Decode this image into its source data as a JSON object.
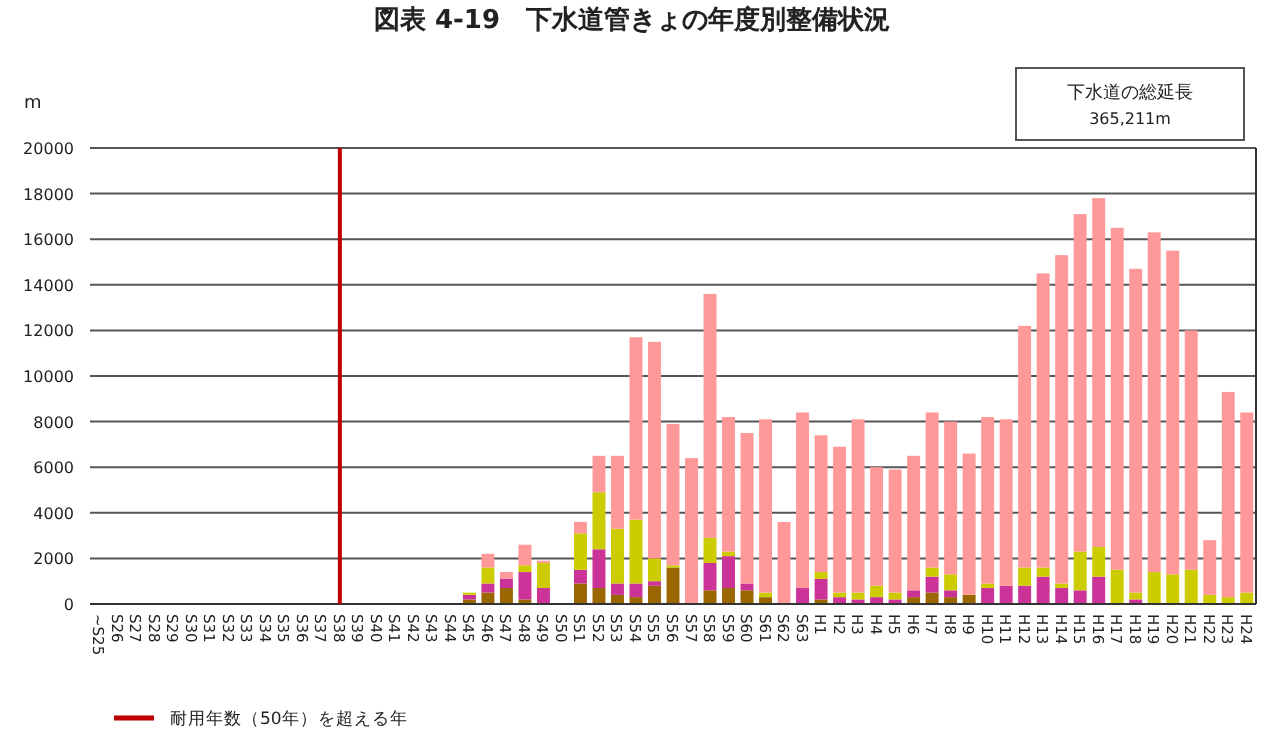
{
  "chart_data": {
    "type": "bar",
    "stacked": true,
    "title": "図表 4-19　下水道管きょの年度別整備状況",
    "ylabel": "m",
    "categories": [
      "~S25",
      "S26",
      "S27",
      "S28",
      "S29",
      "S30",
      "S31",
      "S32",
      "S33",
      "S34",
      "S35",
      "S36",
      "S37",
      "S38",
      "S39",
      "S40",
      "S41",
      "S42",
      "S43",
      "S44",
      "S45",
      "S46",
      "S47",
      "S48",
      "S49",
      "S50",
      "S51",
      "S52",
      "S53",
      "S54",
      "S55",
      "S56",
      "S57",
      "S58",
      "S59",
      "S60",
      "S61",
      "S62",
      "S63",
      "H1",
      "H2",
      "H3",
      "H4",
      "H5",
      "H6",
      "H7",
      "H8",
      "H9",
      "H10",
      "H11",
      "H12",
      "H13",
      "H14",
      "H15",
      "H16",
      "H17",
      "H18",
      "H19",
      "H20",
      "H21",
      "H22",
      "H23",
      "H24"
    ],
    "series": [
      {
        "color": "#996600",
        "values": [
          null,
          null,
          null,
          null,
          null,
          null,
          null,
          null,
          null,
          null,
          null,
          null,
          null,
          null,
          null,
          null,
          null,
          null,
          null,
          null,
          200,
          500,
          700,
          200,
          0,
          0,
          900,
          700,
          400,
          300,
          800,
          1600,
          0,
          600,
          700,
          600,
          300,
          0,
          0,
          200,
          0,
          null,
          null,
          0,
          300,
          500,
          300,
          400,
          0,
          0,
          0,
          0,
          0,
          0,
          0,
          null,
          null,
          0,
          0,
          0,
          0,
          0,
          0
        ]
      },
      {
        "color": "#cc3399",
        "values": [
          null,
          null,
          null,
          null,
          null,
          null,
          null,
          null,
          null,
          null,
          null,
          null,
          null,
          null,
          null,
          null,
          null,
          null,
          null,
          null,
          200,
          400,
          400,
          1200,
          700,
          0,
          600,
          1700,
          500,
          600,
          200,
          0,
          0,
          1200,
          1400,
          300,
          0,
          0,
          700,
          900,
          300,
          200,
          300,
          200,
          300,
          700,
          300,
          0,
          700,
          800,
          800,
          1200,
          700,
          600,
          1200,
          0,
          200,
          0,
          0,
          0,
          0,
          0,
          0
        ]
      },
      {
        "color": "#cccc00",
        "values": [
          null,
          null,
          null,
          null,
          null,
          null,
          null,
          null,
          null,
          null,
          null,
          null,
          null,
          null,
          null,
          null,
          null,
          null,
          null,
          null,
          100,
          700,
          0,
          300,
          1100,
          0,
          1600,
          2500,
          2400,
          2800,
          1000,
          100,
          0,
          1100,
          200,
          0,
          200,
          0,
          0,
          300,
          200,
          300,
          500,
          300,
          0,
          400,
          700,
          0,
          200,
          0,
          800,
          400,
          200,
          1700,
          1300,
          1500,
          300,
          1400,
          1300,
          1500,
          400,
          300,
          500
        ]
      },
      {
        "color": "#ff9999",
        "values": [
          null,
          null,
          null,
          null,
          null,
          null,
          null,
          null,
          null,
          null,
          null,
          null,
          null,
          null,
          null,
          null,
          null,
          null,
          null,
          null,
          0,
          600,
          300,
          900,
          100,
          0,
          500,
          1600,
          3200,
          8000,
          9500,
          6200,
          6400,
          10700,
          5900,
          6600,
          7600,
          3600,
          7700,
          6000,
          6400,
          7600,
          5200,
          5400,
          5900,
          6800,
          6700,
          6200,
          7300,
          7300,
          10600,
          12900,
          14400,
          14800,
          15300,
          15000,
          14200,
          14900,
          14200,
          10500,
          2400,
          9000,
          7900
        ]
      }
    ],
    "ylim": [
      0,
      20000
    ],
    "yticks": [
      0,
      2000,
      4000,
      6000,
      8000,
      10000,
      12000,
      14000,
      16000,
      18000,
      20000
    ],
    "grid": "y",
    "ref_lines": [
      {
        "axis": "x",
        "value": "S38",
        "label": "耐用年数（50年）を超える年",
        "color": "#c00000"
      }
    ],
    "annotations": [
      "下水道の総延長",
      "365,211m"
    ]
  }
}
